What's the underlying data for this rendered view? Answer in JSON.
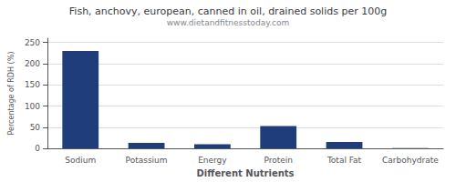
{
  "chart_data": {
    "type": "bar",
    "title": "Fish, anchovy, european, canned in oil, drained solids per 100g",
    "subtitle": "www.dietandfitnesstoday.com",
    "xlabel": "Different Nutrients",
    "ylabel": "Percentage of RDH (%)",
    "categories": [
      "Sodium",
      "Potassium",
      "Energy",
      "Protein",
      "Total Fat",
      "Carbohydrate"
    ],
    "values": [
      230,
      13,
      10,
      53,
      15,
      1
    ],
    "color": "#1f3d7a",
    "ylim": [
      0,
      260
    ],
    "yticks": [
      0,
      50,
      100,
      150,
      200,
      250
    ],
    "grid": true
  }
}
